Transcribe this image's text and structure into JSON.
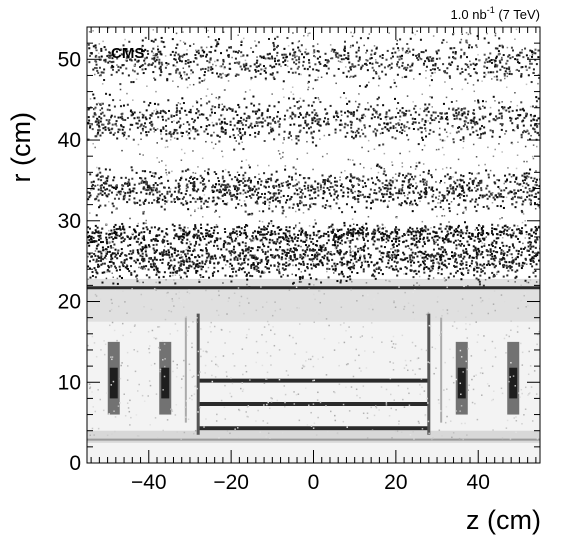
{
  "chart_data": {
    "type": "heatmap",
    "title": "",
    "experiment_label": "CMS",
    "luminosity": {
      "prefix": "1.0 nb",
      "exponent": "-1",
      "suffix": " (7 TeV)"
    },
    "xlabel": "z (cm)",
    "ylabel": "r (cm)",
    "xlim": [
      -55,
      55
    ],
    "ylim": [
      0,
      54
    ],
    "x_ticks": [
      -40,
      -20,
      0,
      20,
      40
    ],
    "x_tick_labels": [
      "−40",
      "−20",
      "0",
      "20",
      "40"
    ],
    "y_ticks": [
      0,
      10,
      20,
      30,
      40,
      50
    ],
    "y_tick_labels": [
      "0",
      "10",
      "20",
      "30",
      "40",
      "50"
    ],
    "colormap": "grayscale (white = empty, black = dense)",
    "grid": false,
    "legend": "none",
    "structures": {
      "beam_pipe_r": 2.9,
      "pixel_barrel_layers_r": [
        4.3,
        7.3,
        10.2
      ],
      "pixel_barrel_z_extent": [
        -28,
        28
      ],
      "pixel_endcap_disks_z": [
        -48.5,
        -36,
        36,
        48.5
      ],
      "pixel_endcap_r_range": [
        6,
        15
      ],
      "support_tube_r": 21.7,
      "strip_inner_barrel_layers_r": [
        25.5,
        33.5,
        42,
        50
      ],
      "strip_inner_barrel_z_extent": [
        -55,
        55
      ]
    }
  }
}
